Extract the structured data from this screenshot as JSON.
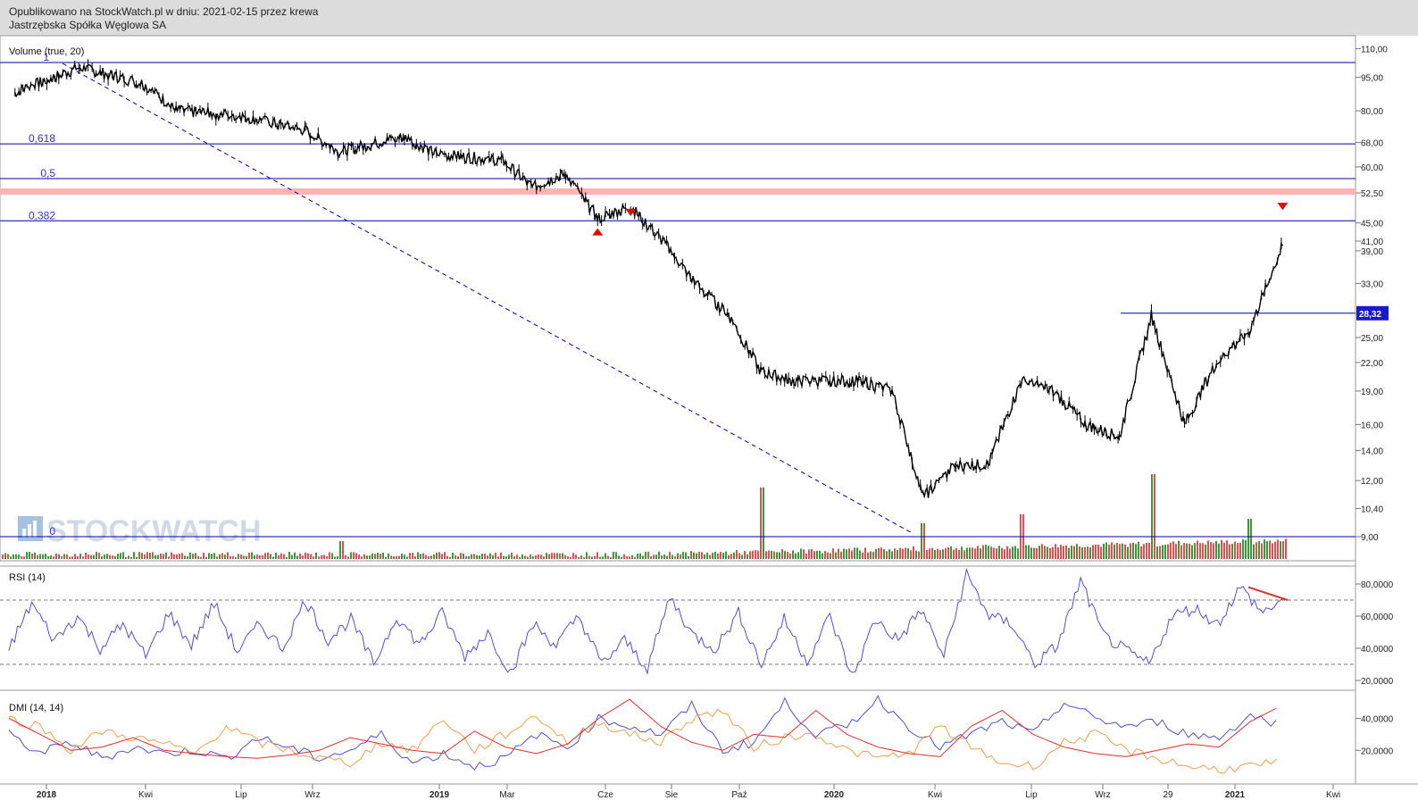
{
  "header": {
    "published_line": "Opublikowano na StockWatch.pl w dniu: 2021-02-15 przez krewa",
    "company": "Jastrzębska Spółka Węglowa SA"
  },
  "watermark": "STOCKWATCH",
  "colors": {
    "price": "#000000",
    "fib_line": "#0000aa",
    "resistance_band": "#ffb3b3",
    "volume_up": "#3a9a3a",
    "volume_down": "#e05050",
    "rsi_line": "#5050d0",
    "dmi_plus": "#5050d0",
    "dmi_minus": "#f0a050",
    "adx": "#e03030",
    "marker": "#ee0000",
    "last_price_bg": "#1a1acc"
  },
  "chart_data": [
    {
      "type": "candlestick",
      "panel": "price",
      "scale": "log",
      "indicator_label": "Volume (true, 20)",
      "x_ticks": [
        "2018",
        "Kwi",
        "Lip",
        "Wrz",
        "2019",
        "Mar",
        "Cze",
        "Sie",
        "Paź",
        "2020",
        "Kwi",
        "Lip",
        "Wrz",
        "29",
        "2021",
        "Kwi"
      ],
      "y_ticks": [
        "110,00",
        "95,00",
        "80,00",
        "68,00",
        "60,00",
        "52,50",
        "45,00",
        "41,00",
        "39,00",
        "33,00",
        "25,00",
        "22,00",
        "19,00",
        "16,00",
        "14,00",
        "12,00",
        "10,40",
        "9,00"
      ],
      "last_price": "28,32",
      "fib_levels": [
        {
          "label": "1",
          "value": 102.5
        },
        {
          "label": "0,618",
          "value": 67.5
        },
        {
          "label": "0,5",
          "value": 56.5
        },
        {
          "label": "0,382",
          "value": 45.5
        },
        {
          "label": "0",
          "value": 9.0
        }
      ],
      "resistance_band": 53.0,
      "price_series_approx": [
        {
          "x": "2017-11",
          "y": 88
        },
        {
          "x": "2018-01",
          "y": 100
        },
        {
          "x": "2018-03",
          "y": 92
        },
        {
          "x": "2018-04",
          "y": 80
        },
        {
          "x": "2018-06",
          "y": 78
        },
        {
          "x": "2018-08",
          "y": 72
        },
        {
          "x": "2018-09",
          "y": 65
        },
        {
          "x": "2018-11",
          "y": 70
        },
        {
          "x": "2018-12",
          "y": 64
        },
        {
          "x": "2019-02",
          "y": 62
        },
        {
          "x": "2019-03",
          "y": 54
        },
        {
          "x": "2019-04",
          "y": 58
        },
        {
          "x": "2019-05",
          "y": 46
        },
        {
          "x": "2019-06",
          "y": 49
        },
        {
          "x": "2019-07",
          "y": 41
        },
        {
          "x": "2019-08",
          "y": 33
        },
        {
          "x": "2019-09",
          "y": 28
        },
        {
          "x": "2019-10",
          "y": 21
        },
        {
          "x": "2019-11",
          "y": 20
        },
        {
          "x": "2020-01",
          "y": 20
        },
        {
          "x": "2020-02",
          "y": 19
        },
        {
          "x": "2020-03",
          "y": 11
        },
        {
          "x": "2020-04",
          "y": 13
        },
        {
          "x": "2020-05",
          "y": 13
        },
        {
          "x": "2020-06",
          "y": 20
        },
        {
          "x": "2020-07",
          "y": 19
        },
        {
          "x": "2020-08",
          "y": 16
        },
        {
          "x": "2020-09",
          "y": 15
        },
        {
          "x": "2020-10",
          "y": 28
        },
        {
          "x": "2020-11",
          "y": 16
        },
        {
          "x": "2020-12",
          "y": 22
        },
        {
          "x": "2021-01",
          "y": 26
        },
        {
          "x": "2021-02",
          "y": 40
        }
      ],
      "markers": [
        {
          "kind": "up-arrow",
          "x": "2019-05",
          "y": 43.2
        },
        {
          "kind": "down-arrow",
          "x": "2019-06",
          "y": 47.5
        },
        {
          "kind": "down-arrow",
          "x": "2021-02",
          "y": 49.0
        }
      ],
      "volume_spikes": [
        {
          "x": "2018-09",
          "v": 4
        },
        {
          "x": "2019-10",
          "v": 16
        },
        {
          "x": "2020-03",
          "v": 8
        },
        {
          "x": "2020-06",
          "v": 10
        },
        {
          "x": "2020-10",
          "v": 19
        },
        {
          "x": "2021-01",
          "v": 9
        }
      ]
    },
    {
      "type": "line",
      "panel": "rsi",
      "indicator_label": "RSI (14)",
      "y_ticks": [
        "80,0000",
        "60,0000",
        "40,0000",
        "20,0000"
      ],
      "reference_levels": [
        70,
        30
      ],
      "values_approx": [
        40,
        68,
        45,
        60,
        40,
        55,
        35,
        62,
        42,
        68,
        38,
        55,
        40,
        70,
        45,
        58,
        30,
        60,
        42,
        62,
        35,
        50,
        25,
        55,
        42,
        60,
        30,
        45,
        28,
        72,
        48,
        40,
        62,
        30,
        58,
        32,
        60,
        22,
        58,
        45,
        64,
        35,
        86,
        60,
        55,
        30,
        42,
        82,
        48,
        38,
        30,
        60,
        65,
        55,
        78,
        62,
        72
      ],
      "divergence_line": {
        "from": 78,
        "to": 70
      }
    },
    {
      "type": "line",
      "panel": "dmi",
      "indicator_label": "DMI (14, 14)",
      "y_ticks": [
        "40,0000",
        "20,0000"
      ],
      "series": [
        {
          "key": "plus_di",
          "values_approx": [
            30,
            18,
            25,
            15,
            22,
            18,
            20,
            15,
            28,
            22,
            15,
            20,
            30,
            12,
            18,
            10,
            15,
            30,
            22,
            40,
            35,
            30,
            48,
            20,
            25,
            50,
            30,
            35,
            52,
            35,
            22,
            30,
            38,
            30,
            50,
            40,
            35,
            38,
            30,
            28,
            42,
            36
          ]
        },
        {
          "key": "minus_di",
          "values_approx": [
            40,
            35,
            20,
            32,
            28,
            24,
            18,
            35,
            25,
            20,
            15,
            12,
            25,
            20,
            40,
            20,
            30,
            42,
            25,
            38,
            30,
            25,
            40,
            45,
            22,
            28,
            30,
            20,
            15,
            18,
            35,
            22,
            12,
            10,
            25,
            30,
            20,
            15,
            10,
            8,
            10,
            12
          ]
        },
        {
          "key": "adx",
          "values_approx": [
            40,
            30,
            20,
            22,
            28,
            20,
            18,
            16,
            15,
            17,
            20,
            28,
            24,
            20,
            18,
            32,
            22,
            18,
            24,
            40,
            52,
            35,
            25,
            20,
            30,
            28,
            45,
            30,
            22,
            18,
            16,
            35,
            45,
            30,
            22,
            18,
            16,
            20,
            24,
            22,
            38,
            48
          ]
        }
      ]
    }
  ]
}
